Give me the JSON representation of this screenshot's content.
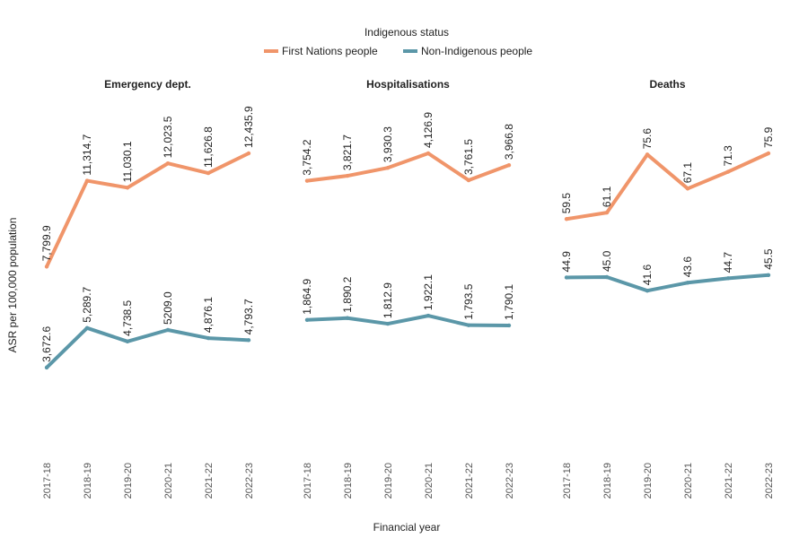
{
  "legend_title": "Indigenous status",
  "y_label": "ASR per 100,000 population",
  "x_label": "Financial year",
  "chart_data": [
    {
      "type": "line",
      "title": "Emergency dept.",
      "categories": [
        "2017-18",
        "2018-19",
        "2019-20",
        "2020-21",
        "2021-22",
        "2022-23"
      ],
      "series": [
        {
          "name": "First Nations people",
          "color": "#f0956a",
          "values": [
            7799.9,
            11314.7,
            11030.1,
            12023.5,
            11626.8,
            12435.9
          ],
          "value_labels": [
            "7,799.9",
            "11,314.7",
            "11,030.1",
            "12,023.5",
            "11,626.8",
            "12,435.9"
          ]
        },
        {
          "name": "Non-Indigenous people",
          "color": "#5b97a8",
          "values": [
            3672.6,
            5289.7,
            4738.5,
            5209.0,
            4876.1,
            4793.7
          ],
          "value_labels": [
            "3,672.6",
            "5,289.7",
            "4,738.5",
            "5209.0",
            "4,876.1",
            "4,793.7"
          ]
        }
      ]
    },
    {
      "type": "line",
      "title": "Hospitalisations",
      "categories": [
        "2017-18",
        "2018-19",
        "2019-20",
        "2020-21",
        "2021-22",
        "2022-23"
      ],
      "series": [
        {
          "name": "First Nations people",
          "color": "#f0956a",
          "values": [
            3754.2,
            3821.7,
            3930.3,
            4126.9,
            3761.5,
            3966.8
          ],
          "value_labels": [
            "3,754.2",
            "3,821.7",
            "3,930.3",
            "4,126.9",
            "3,761.5",
            "3,966.8"
          ]
        },
        {
          "name": "Non-Indigenous people",
          "color": "#5b97a8",
          "values": [
            1864.9,
            1890.2,
            1812.9,
            1922.1,
            1793.5,
            1790.1
          ],
          "value_labels": [
            "1,864.9",
            "1,890.2",
            "1,812.9",
            "1,922.1",
            "1,793.5",
            "1,790.1"
          ]
        }
      ]
    },
    {
      "type": "line",
      "title": "Deaths",
      "categories": [
        "2017-18",
        "2018-19",
        "2019-20",
        "2020-21",
        "2021-22",
        "2022-23"
      ],
      "series": [
        {
          "name": "First Nations people",
          "color": "#f0956a",
          "values": [
            59.5,
            61.1,
            75.6,
            67.1,
            71.3,
            75.9
          ]
        },
        {
          "name": "Non-Indigenous people",
          "color": "#5b97a8",
          "values": [
            44.9,
            45.0,
            41.6,
            43.6,
            44.7,
            45.5
          ],
          "value_labels": [
            "44.9",
            "45.0",
            "41.6",
            "43.6",
            "44.7",
            "45.5"
          ]
        }
      ]
    }
  ]
}
